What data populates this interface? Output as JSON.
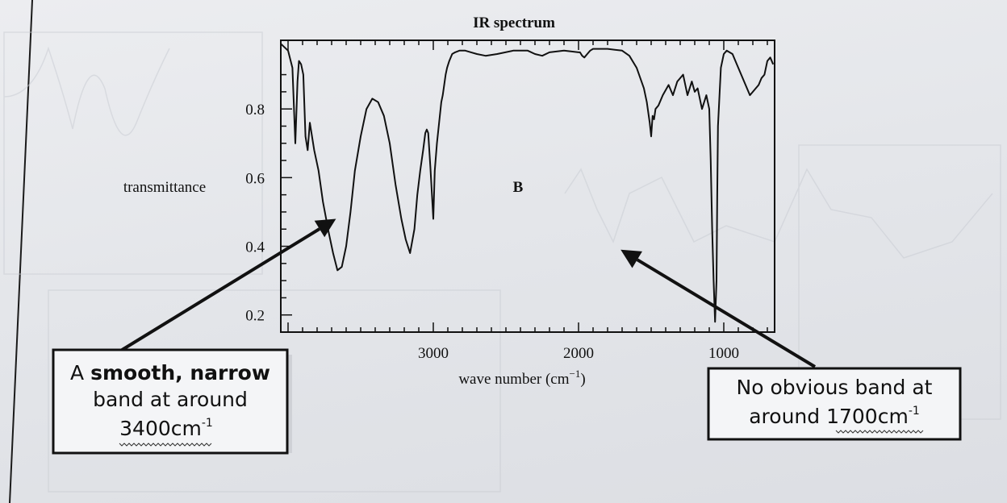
{
  "chart_data": {
    "type": "line",
    "title": "IR spectrum",
    "xlabel_main": "wave number (cm",
    "xlabel_sup": "−1",
    "xlabel_close": ")",
    "ylabel": "transmittance",
    "panel_label": "B",
    "x_reversed": true,
    "xlim": [
      4050,
      650
    ],
    "ylim": [
      0.15,
      1.0
    ],
    "x_ticks": [
      3000,
      2000,
      1000
    ],
    "y_ticks": [
      0.2,
      0.4,
      0.6,
      0.8
    ],
    "x_tick_labels": [
      "3000",
      "2000",
      "1000"
    ],
    "y_tick_labels": [
      "0.2",
      "0.4",
      "0.6",
      "0.8"
    ],
    "grid": false,
    "series": [
      {
        "x": [
          4050,
          4000,
          3970,
          3950,
          3935,
          3925,
          3910,
          3895,
          3880,
          3865,
          3850,
          3820,
          3790,
          3760,
          3720,
          3690,
          3660,
          3630,
          3600,
          3570,
          3540,
          3500,
          3460,
          3420,
          3380,
          3340,
          3300,
          3260,
          3220,
          3190,
          3160,
          3130,
          3110,
          3090,
          3070,
          3055,
          3045,
          3035,
          3020,
          3000,
          2990,
          2975,
          2960,
          2950,
          2945,
          2935,
          2925,
          2915,
          2905,
          2890,
          2870,
          2850,
          2820,
          2780,
          2740,
          2700,
          2640,
          2560,
          2450,
          2350,
          2300,
          2250,
          2200,
          2100,
          2000,
          1990,
          1975,
          1960,
          1940,
          1920,
          1900,
          1800,
          1700,
          1650,
          1600,
          1550,
          1530,
          1510,
          1500,
          1490,
          1480,
          1470,
          1450,
          1420,
          1380,
          1350,
          1320,
          1280,
          1250,
          1220,
          1200,
          1180,
          1150,
          1120,
          1100,
          1090,
          1080,
          1070,
          1060,
          1050,
          1045,
          1040,
          1020,
          1000,
          980,
          960,
          940,
          920,
          900,
          880,
          860,
          840,
          820,
          800,
          780,
          760,
          740,
          720,
          700,
          680,
          660
        ],
        "y": [
          0.99,
          0.97,
          0.92,
          0.7,
          0.88,
          0.94,
          0.93,
          0.9,
          0.72,
          0.68,
          0.76,
          0.68,
          0.62,
          0.53,
          0.44,
          0.38,
          0.33,
          0.34,
          0.4,
          0.5,
          0.62,
          0.72,
          0.8,
          0.83,
          0.82,
          0.78,
          0.7,
          0.58,
          0.48,
          0.42,
          0.38,
          0.45,
          0.55,
          0.62,
          0.68,
          0.73,
          0.74,
          0.73,
          0.63,
          0.48,
          0.62,
          0.7,
          0.76,
          0.8,
          0.82,
          0.84,
          0.87,
          0.9,
          0.92,
          0.94,
          0.96,
          0.965,
          0.97,
          0.97,
          0.965,
          0.96,
          0.955,
          0.96,
          0.97,
          0.97,
          0.96,
          0.955,
          0.965,
          0.97,
          0.965,
          0.965,
          0.955,
          0.95,
          0.96,
          0.97,
          0.975,
          0.975,
          0.97,
          0.955,
          0.92,
          0.86,
          0.82,
          0.76,
          0.72,
          0.78,
          0.77,
          0.8,
          0.81,
          0.84,
          0.87,
          0.84,
          0.88,
          0.9,
          0.84,
          0.88,
          0.85,
          0.86,
          0.8,
          0.84,
          0.8,
          0.65,
          0.45,
          0.3,
          0.18,
          0.3,
          0.55,
          0.75,
          0.92,
          0.96,
          0.97,
          0.965,
          0.96,
          0.94,
          0.92,
          0.9,
          0.88,
          0.86,
          0.84,
          0.85,
          0.86,
          0.87,
          0.89,
          0.9,
          0.94,
          0.95,
          0.93
        ]
      }
    ],
    "annotations": {
      "left": {
        "line1_pre": "A ",
        "line1_bold": "smooth, narrow",
        "line2": "band at around",
        "line3_main": "3400cm",
        "line3_sup": "-1",
        "points_to": [
          3670,
          0.48
        ]
      },
      "right": {
        "line1": "No obvious band at",
        "line2_pre": "around ",
        "line2_main": "1700cm",
        "line2_sup": "-1",
        "points_to": [
          1710,
          0.39
        ]
      }
    }
  }
}
